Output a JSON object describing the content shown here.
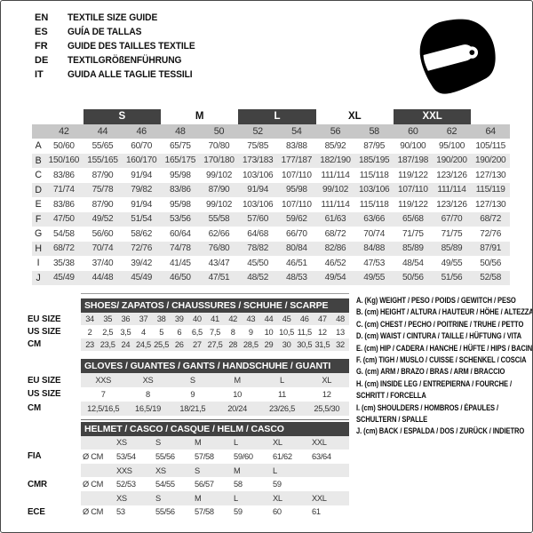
{
  "header": {
    "languages": [
      {
        "code": "EN",
        "title": "TEXTILE SIZE GUIDE"
      },
      {
        "code": "ES",
        "title": "GUÍA DE TALLAS"
      },
      {
        "code": "FR",
        "title": "GUIDE DES TAILLES TEXTILE"
      },
      {
        "code": "DE",
        "title": "TEXTILGRÖßENFÜHRUNG"
      },
      {
        "code": "IT",
        "title": "GUIDA ALLE TAGLIE TESSILI"
      }
    ],
    "logo_icon": "helmet-icon"
  },
  "main_table": {
    "group_headers": [
      {
        "label": "S",
        "dark": true
      },
      {
        "label": "M",
        "dark": false
      },
      {
        "label": "L",
        "dark": true
      },
      {
        "label": "XL",
        "dark": false
      },
      {
        "label": "XXL",
        "dark": true
      }
    ],
    "sizes": [
      "42",
      "44",
      "46",
      "48",
      "50",
      "52",
      "54",
      "56",
      "58",
      "60",
      "62",
      "64"
    ],
    "rows": [
      {
        "label": "A",
        "values": [
          "50/60",
          "55/65",
          "60/70",
          "65/75",
          "70/80",
          "75/85",
          "83/88",
          "85/92",
          "87/95",
          "90/100",
          "95/100",
          "105/115"
        ]
      },
      {
        "label": "B",
        "values": [
          "150/160",
          "155/165",
          "160/170",
          "165/175",
          "170/180",
          "173/183",
          "177/187",
          "182/190",
          "185/195",
          "187/198",
          "190/200",
          "190/200"
        ]
      },
      {
        "label": "C",
        "values": [
          "83/86",
          "87/90",
          "91/94",
          "95/98",
          "99/102",
          "103/106",
          "107/110",
          "111/114",
          "115/118",
          "119/122",
          "123/126",
          "127/130"
        ]
      },
      {
        "label": "D",
        "values": [
          "71/74",
          "75/78",
          "79/82",
          "83/86",
          "87/90",
          "91/94",
          "95/98",
          "99/102",
          "103/106",
          "107/110",
          "111/114",
          "115/119"
        ]
      },
      {
        "label": "E",
        "values": [
          "83/86",
          "87/90",
          "91/94",
          "95/98",
          "99/102",
          "103/106",
          "107/110",
          "111/114",
          "115/118",
          "119/122",
          "123/126",
          "127/130"
        ]
      },
      {
        "label": "F",
        "values": [
          "47/50",
          "49/52",
          "51/54",
          "53/56",
          "55/58",
          "57/60",
          "59/62",
          "61/63",
          "63/66",
          "65/68",
          "67/70",
          "68/72"
        ]
      },
      {
        "label": "G",
        "values": [
          "54/58",
          "56/60",
          "58/62",
          "60/64",
          "62/66",
          "64/68",
          "66/70",
          "68/72",
          "70/74",
          "71/75",
          "71/75",
          "72/76"
        ]
      },
      {
        "label": "H",
        "values": [
          "68/72",
          "70/74",
          "72/76",
          "74/78",
          "76/80",
          "78/82",
          "80/84",
          "82/86",
          "84/88",
          "85/89",
          "85/89",
          "87/91"
        ]
      },
      {
        "label": "I",
        "values": [
          "35/38",
          "37/40",
          "39/42",
          "41/45",
          "43/47",
          "45/50",
          "46/51",
          "46/52",
          "47/53",
          "48/54",
          "49/55",
          "50/56"
        ]
      },
      {
        "label": "J",
        "values": [
          "45/49",
          "44/48",
          "45/49",
          "46/50",
          "47/51",
          "48/52",
          "48/53",
          "49/54",
          "49/55",
          "50/56",
          "51/56",
          "52/58"
        ]
      }
    ]
  },
  "shoes_table": {
    "title": "SHOES/ ZAPATOS / CHAUSSURES / SCHUHE / SCARPE",
    "rows": [
      {
        "label": "EU SIZE",
        "gray": true,
        "cells": [
          "34",
          "35",
          "36",
          "37",
          "38",
          "39",
          "40",
          "41",
          "42",
          "43",
          "44",
          "45",
          "46",
          "47",
          "48"
        ]
      },
      {
        "label": "US SIZE",
        "gray": false,
        "cells": [
          "2",
          "2,5",
          "3,5",
          "4",
          "5",
          "6",
          "6,5",
          "7,5",
          "8",
          "9",
          "10",
          "10,5",
          "11,5",
          "12",
          "13"
        ]
      },
      {
        "label": "CM",
        "gray": true,
        "cells": [
          "23",
          "23,5",
          "24",
          "24,5",
          "25,5",
          "26",
          "27",
          "27,5",
          "28",
          "28,5",
          "29",
          "30",
          "30,5",
          "31,5",
          "32"
        ]
      }
    ]
  },
  "gloves_table": {
    "title": "GLOVES / GUANTES / GANTS / HANDSCHUHE / GUANTI",
    "rows": [
      {
        "label": "EU SIZE",
        "gray": true,
        "cells": [
          "XXS",
          "XS",
          "S",
          "M",
          "L",
          "XL"
        ]
      },
      {
        "label": "US SIZE",
        "gray": false,
        "cells": [
          "7",
          "8",
          "9",
          "10",
          "11",
          "12"
        ]
      },
      {
        "label": "CM",
        "gray": true,
        "cells": [
          "12,5/16,5",
          "16,5/19",
          "18/21,5",
          "20/24",
          "23/26,5",
          "25,5/30"
        ]
      }
    ]
  },
  "helmet_table": {
    "title": "HELMET / CASCO / CASQUE / HELM / CASCO",
    "rows": [
      {
        "label": "",
        "gray": true,
        "cells": [
          "",
          "XS",
          "S",
          "M",
          "L",
          "XL",
          "XXL"
        ]
      },
      {
        "label": "FIA",
        "gray": false,
        "cells": [
          "Ø CM",
          "53/54",
          "55/56",
          "57/58",
          "59/60",
          "61/62",
          "63/64"
        ]
      },
      {
        "label": "",
        "gray": true,
        "cells": [
          "",
          "XXS",
          "XS",
          "S",
          "M",
          "L",
          ""
        ]
      },
      {
        "label": "CMR",
        "gray": false,
        "cells": [
          "Ø CM",
          "52/53",
          "54/55",
          "56/57",
          "58",
          "59",
          ""
        ]
      },
      {
        "label": "",
        "gray": true,
        "cells": [
          "",
          "XS",
          "S",
          "M",
          "L",
          "XL",
          "XXL"
        ]
      },
      {
        "label": "ECE",
        "gray": false,
        "cells": [
          "Ø CM",
          "53",
          "55/56",
          "57/58",
          "59",
          "60",
          "61"
        ]
      }
    ]
  },
  "legend": {
    "lines": [
      "A. (Kg) WEIGHT / PESO / POIDS / GEWITCH / PESO",
      "B. (cm) HEIGHT / ALTURA / HAUTEUR / HÖHE / ALTEZZA",
      "C. (cm) CHEST / PECHO / POITRINE / TRUHE / PETTO",
      "D. (cm) WAIST / CINTURA / TAILLE / HÜFTUNG / VITA",
      "E. (cm) HIP / CADERA / HANCHE / HÜFTE / HIPS /  BACINO",
      "F. (cm) TIGH / MUSLO / CUISSE / SCHENKEL / COSCIA",
      "G. (cm) ARM  / BRAZO / BRAS / ARM / BRACCIO",
      "H. (cm) INSIDE LEG / ENTREPIERNA / FOURCHE /",
      "SCHRITT / FORCELLA",
      "I.  (cm) SHOULDERS / HOMBROS / ÉPAULES /",
      "SCHULTERN / SPALLE",
      "J. (cm) BACK / ESPALDA / DOS / ZURÜCK / INDIETRO"
    ]
  },
  "colors": {
    "header_bar": "#424242",
    "size_row_gray": "#c7c7c7",
    "stripe_gray": "#e9e9e9",
    "text": "#333333"
  }
}
